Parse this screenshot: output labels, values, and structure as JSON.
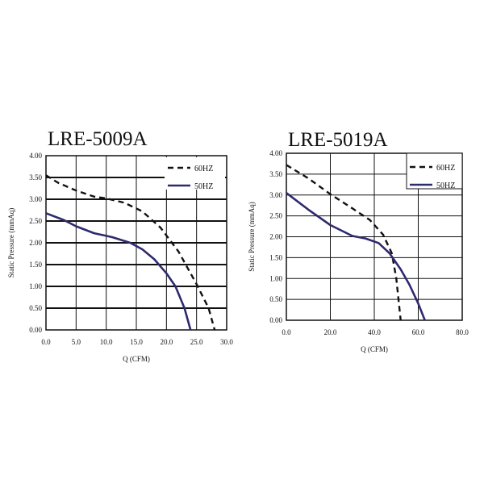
{
  "colors": {
    "s60": "#111111",
    "s50": "#2e2a6e",
    "grid": "#111111",
    "frame": "#111111"
  },
  "chart_data": [
    {
      "type": "line",
      "title": "LRE-5009A",
      "xlabel": "Q (CFM)",
      "ylabel": "Static Pressure (mmAq)",
      "xlim": [
        0,
        30
      ],
      "ylim": [
        0,
        4
      ],
      "xticks": [
        0,
        5,
        10,
        15,
        20,
        25,
        30
      ],
      "xtick_labels": [
        "0.0",
        "5.0",
        "10.0",
        "15.0",
        "20.0",
        "25.0",
        "30.0"
      ],
      "yticks": [
        0,
        0.5,
        1,
        1.5,
        2,
        2.5,
        3,
        3.5,
        4
      ],
      "ytick_labels": [
        "0.00",
        "0.50",
        "1.00",
        "1.50",
        "2.00",
        "2.50",
        "3.00",
        "3.50",
        "4.00"
      ],
      "grid": "both",
      "legend_position": "top-right",
      "series": [
        {
          "name": "60HZ",
          "style": "dashed",
          "x": [
            0,
            2,
            5,
            8,
            10,
            13,
            16,
            19,
            22,
            25,
            27,
            28
          ],
          "y": [
            3.55,
            3.38,
            3.2,
            3.06,
            3.02,
            2.92,
            2.72,
            2.35,
            1.8,
            1.05,
            0.5,
            0.0
          ]
        },
        {
          "name": "50HZ",
          "style": "solid",
          "x": [
            0,
            3,
            5,
            8,
            11,
            14,
            16,
            18,
            20,
            21.5,
            23,
            24
          ],
          "y": [
            2.68,
            2.52,
            2.38,
            2.22,
            2.13,
            2.0,
            1.85,
            1.62,
            1.3,
            1.0,
            0.5,
            0.0
          ]
        }
      ]
    },
    {
      "type": "line",
      "title": "LRE-5019A",
      "xlabel": "Q (CFM)",
      "ylabel": "Static Pressure (mmAq)",
      "xlim": [
        0,
        80
      ],
      "ylim": [
        0,
        4
      ],
      "xticks": [
        0,
        20,
        40,
        60,
        80
      ],
      "xtick_labels": [
        "0.0",
        "20.0",
        "40.0",
        "60.0",
        "80.0"
      ],
      "yticks": [
        0,
        0.5,
        1,
        1.5,
        2,
        2.5,
        3,
        3.5,
        4
      ],
      "ytick_labels": [
        "0.00",
        "0.50",
        "1.00",
        "1.50",
        "2.00",
        "2.50",
        "3.00",
        "3.50",
        "4.00"
      ],
      "grid": "both",
      "legend_position": "top-right",
      "series": [
        {
          "name": "60HZ",
          "style": "dashed",
          "x": [
            0,
            10,
            20,
            30,
            38,
            44,
            48,
            50,
            51,
            52
          ],
          "y": [
            3.72,
            3.4,
            3.02,
            2.68,
            2.4,
            2.05,
            1.6,
            1.0,
            0.5,
            0.0
          ]
        },
        {
          "name": "50HZ",
          "style": "solid",
          "x": [
            0,
            10,
            20,
            30,
            36,
            42,
            47,
            52,
            56,
            60,
            63
          ],
          "y": [
            3.05,
            2.65,
            2.28,
            2.02,
            1.96,
            1.85,
            1.6,
            1.22,
            0.85,
            0.4,
            0.0
          ]
        }
      ]
    }
  ]
}
